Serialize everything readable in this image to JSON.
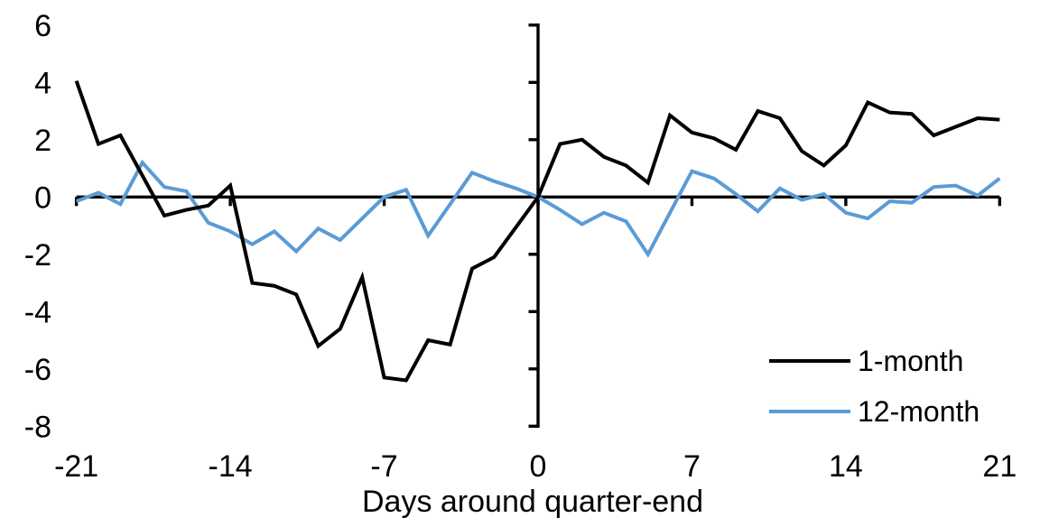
{
  "chart_data": {
    "type": "line",
    "title": "",
    "xlabel": "Days around quarter-end",
    "ylabel": "",
    "xlim": [
      -21,
      21
    ],
    "ylim": [
      -8,
      6
    ],
    "xticks": [
      -21,
      -14,
      -7,
      0,
      7,
      14,
      21
    ],
    "yticks": [
      6,
      4,
      2,
      0,
      -2,
      -4,
      -6,
      -8
    ],
    "grid": false,
    "legend_position": "lower right",
    "x": [
      -21,
      -20,
      -19,
      -18,
      -17,
      -16,
      -15,
      -14,
      -13,
      -12,
      -11,
      -10,
      -9,
      -8,
      -7,
      -6,
      -5,
      -4,
      -3,
      -2,
      -1,
      0,
      1,
      2,
      3,
      4,
      5,
      6,
      7,
      8,
      9,
      10,
      11,
      12,
      13,
      14,
      15,
      16,
      17,
      18,
      19,
      20,
      21
    ],
    "series": [
      {
        "name": "1-month",
        "color": "#000000",
        "values": [
          4.05,
          1.85,
          2.15,
          0.75,
          -0.65,
          -0.45,
          -0.3,
          0.4,
          -3.0,
          -3.1,
          -3.4,
          -5.2,
          -4.6,
          -2.8,
          -6.3,
          -6.4,
          -5.0,
          -5.15,
          -2.5,
          -2.1,
          -1.05,
          0.0,
          1.85,
          2.0,
          1.4,
          1.1,
          0.5,
          2.85,
          2.25,
          2.05,
          1.65,
          3.0,
          2.75,
          1.6,
          1.1,
          1.8,
          3.3,
          2.95,
          2.9,
          2.15,
          2.45,
          2.75,
          2.7
        ]
      },
      {
        "name": "12-month",
        "color": "#5B9BD5",
        "values": [
          -0.15,
          0.15,
          -0.25,
          1.2,
          0.35,
          0.2,
          -0.9,
          -1.2,
          -1.65,
          -1.2,
          -1.9,
          -1.1,
          -1.5,
          -0.75,
          0.0,
          0.25,
          -1.35,
          -0.25,
          0.85,
          0.55,
          0.3,
          0.0,
          -0.45,
          -0.95,
          -0.55,
          -0.85,
          -2.0,
          -0.55,
          0.9,
          0.65,
          0.1,
          -0.5,
          0.3,
          -0.1,
          0.1,
          -0.55,
          -0.75,
          -0.15,
          -0.2,
          0.35,
          0.4,
          0.05,
          0.65
        ]
      }
    ]
  },
  "axis_style": {
    "tick_label_color": "#000000",
    "axis_color": "#000000"
  }
}
